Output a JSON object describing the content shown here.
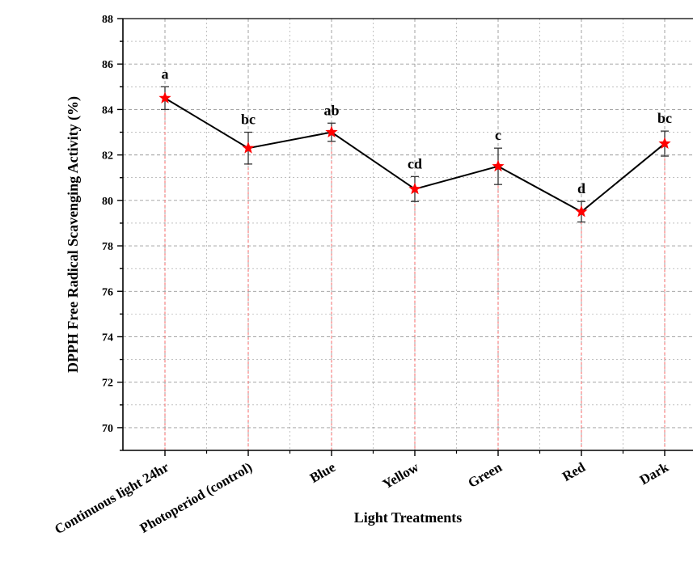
{
  "chart_data": {
    "type": "line",
    "title": "",
    "xlabel": "Light Treatments",
    "ylabel": "DPPH Free Radical Scavenging Activity (%)",
    "ylim": [
      69,
      88
    ],
    "yticks": [
      70,
      72,
      74,
      76,
      78,
      80,
      82,
      84,
      86,
      88
    ],
    "categories": [
      "Continuous light 24hr",
      "Photoperiod (control)",
      "Blue",
      "Yellow",
      "Green",
      "Red",
      "Dark"
    ],
    "values": [
      84.5,
      82.3,
      83.0,
      80.5,
      81.5,
      79.5,
      82.5
    ],
    "errors": [
      0.5,
      0.7,
      0.4,
      0.55,
      0.8,
      0.45,
      0.55
    ],
    "significance_labels": [
      "a",
      "bc",
      "ab",
      "cd",
      "c",
      "d",
      "bc"
    ],
    "grid": true,
    "colors": {
      "line": "#000000",
      "marker": "#ff0000",
      "drop_line": "#ff6666",
      "grid": "#9a9a9a"
    }
  }
}
